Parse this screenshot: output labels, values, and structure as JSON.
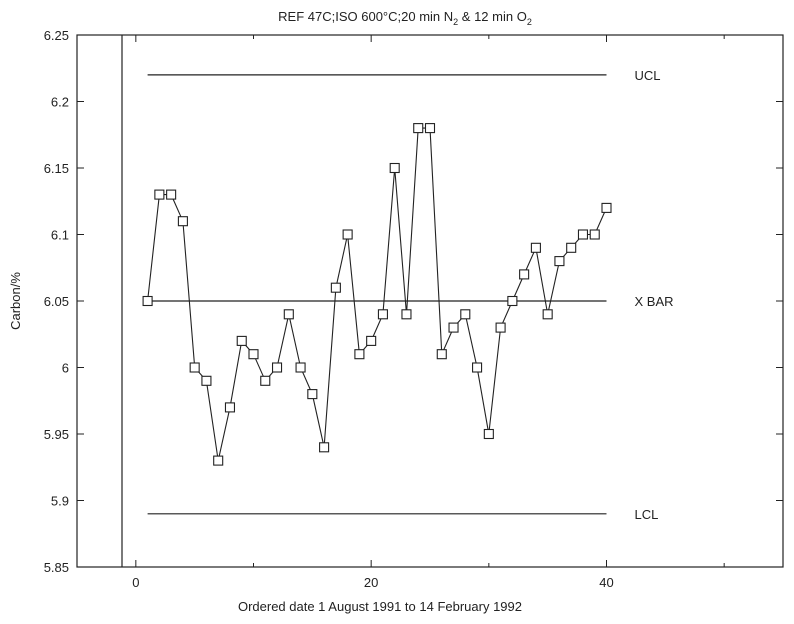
{
  "chart_data": {
    "type": "line",
    "title": {
      "prefix": "REF 47C;ISO 600°C;20 min N",
      "sub1": "2",
      "middle": " & 12 min O",
      "sub2": "2"
    },
    "xlabel": "Ordered date 1 August 1991 to 14 February 1992",
    "ylabel": "Carbon/%",
    "xlim": [
      -5,
      55
    ],
    "ylim": [
      5.85,
      6.25
    ],
    "xticks": [
      0,
      20,
      40
    ],
    "yticks": [
      5.85,
      5.9,
      5.95,
      6,
      6.05,
      6.1,
      6.15,
      6.2,
      6.25
    ],
    "xticklabels": [
      "0",
      "20",
      "40"
    ],
    "yticklabels": [
      "5.85",
      "5.9",
      "5.95",
      "6",
      "6.05",
      "6.1",
      "6.15",
      "6.2",
      "6.25"
    ],
    "marker": "square",
    "grid": false,
    "reference_lines": [
      {
        "label": "UCL",
        "value": 6.22,
        "x_from": 1,
        "x_to": 40
      },
      {
        "label": "X BAR",
        "value": 6.05,
        "x_from": 1,
        "x_to": 40
      },
      {
        "label": "LCL",
        "value": 5.89,
        "x_from": 1,
        "x_to": 40
      }
    ],
    "x": [
      1,
      2,
      3,
      4,
      5,
      6,
      7,
      8,
      9,
      10,
      11,
      12,
      13,
      14,
      15,
      16,
      17,
      18,
      19,
      20,
      21,
      22,
      23,
      24,
      25,
      26,
      27,
      28,
      29,
      30,
      31,
      32,
      33,
      34,
      35,
      36,
      37,
      38,
      39,
      40
    ],
    "y": [
      6.05,
      6.13,
      6.13,
      6.11,
      6.0,
      5.99,
      5.93,
      5.97,
      6.02,
      6.01,
      5.99,
      6.0,
      6.04,
      6.0,
      5.98,
      5.94,
      6.06,
      6.1,
      6.01,
      6.02,
      6.04,
      6.15,
      6.04,
      6.18,
      6.18,
      6.01,
      6.03,
      6.04,
      6.0,
      5.95,
      6.03,
      6.05,
      6.07,
      6.09,
      6.04,
      6.08,
      6.09,
      6.1,
      6.1,
      6.12
    ]
  }
}
